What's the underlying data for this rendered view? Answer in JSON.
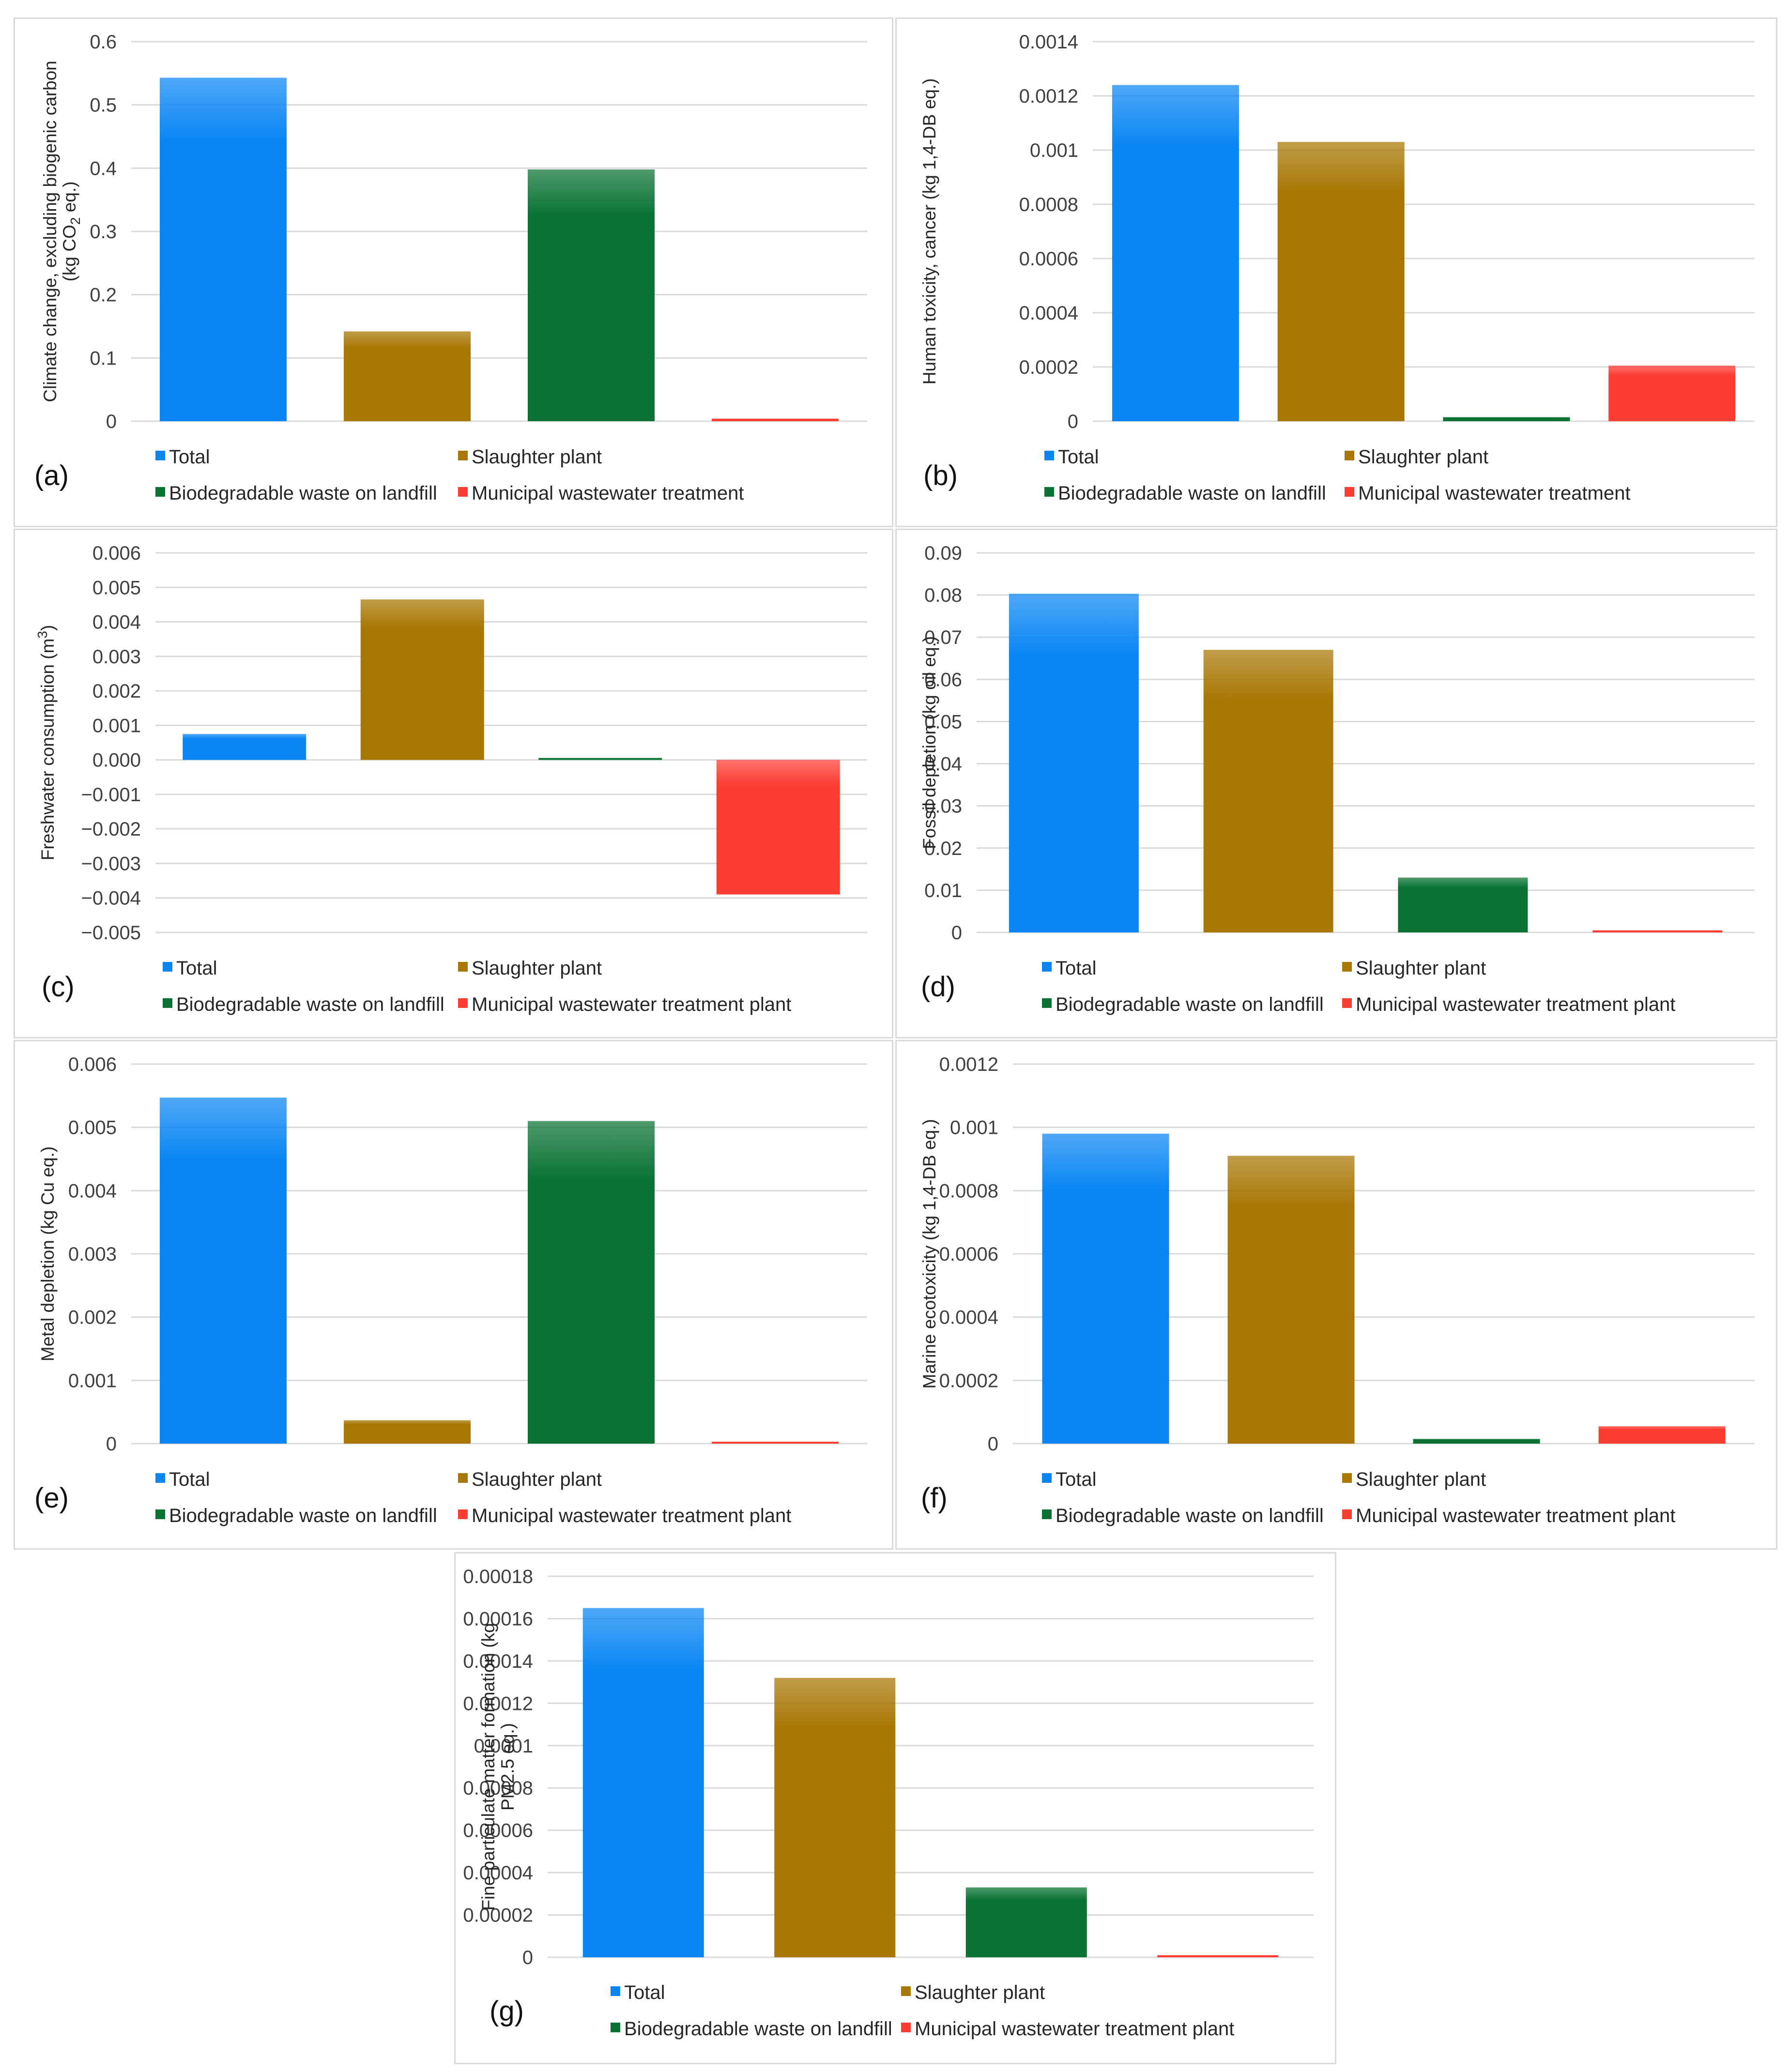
{
  "colors": {
    "Total": "#0a86f4",
    "Slaughter plant": "#a87704",
    "Biodegradable waste on landfill": "#0a7334",
    "Municipal wastewater treatment": "#fc3d34",
    "grid": "#d9d9d9"
  },
  "chart_data": [
    {
      "type": "bar",
      "panel_label": "(a)",
      "ylabel_lines": [
        "Climate change, excluding biogenic carbon",
        "(kg CO2 eq.)"
      ],
      "categories": [
        "Total",
        "Slaughter plant",
        "Biodegradable waste on landfill",
        "Municipal wastewater treatment"
      ],
      "legend": [
        "Total",
        "Slaughter plant",
        "Biodegradable waste on landfill",
        "Municipal wastewater treatment"
      ],
      "values": [
        0.543,
        0.142,
        0.398,
        0.004
      ],
      "ylim": [
        0,
        0.6
      ],
      "yticks": [
        "0",
        "0.1",
        "0.2",
        "0.3",
        "0.4",
        "0.5",
        "0.6"
      ]
    },
    {
      "type": "bar",
      "panel_label": "(b)",
      "ylabel_lines": [
        "Human toxicity, cancer (kg 1,4-DB eq.)"
      ],
      "categories": [
        "Total",
        "Slaughter plant",
        "Biodegradable waste on landfill",
        "Municipal wastewater treatment"
      ],
      "legend": [
        "Total",
        "Slaughter plant",
        "Biodegradable waste on landfill",
        "Municipal wastewater treatment"
      ],
      "values": [
        0.00124,
        0.00103,
        1.5e-05,
        0.000205
      ],
      "ylim": [
        0,
        0.0014
      ],
      "yticks": [
        "0",
        "0.0002",
        "0.0004",
        "0.0006",
        "0.0008",
        "0.001",
        "0.0012",
        "0.0014"
      ]
    },
    {
      "type": "bar",
      "panel_label": "(c)",
      "ylabel_lines": [
        "Freshwater consumption (m3)"
      ],
      "categories": [
        "Total",
        "Slaughter plant",
        "Biodegradable waste on landfill",
        "Municipal wastewater treatment plant"
      ],
      "legend": [
        "Total",
        "Slaughter plant",
        "Biodegradable waste on landfill",
        "Municipal wastewater treatment plant"
      ],
      "values": [
        0.00075,
        0.00465,
        5e-05,
        -0.0039
      ],
      "ylim": [
        -0.005,
        0.006
      ],
      "yticks": [
        "−0.005",
        "−0.004",
        "−0.003",
        "−0.002",
        "−0.001",
        "0.000",
        "0.001",
        "0.002",
        "0.003",
        "0.004",
        "0.005",
        "0.006"
      ]
    },
    {
      "type": "bar",
      "panel_label": "(d)",
      "ylabel_lines": [
        "Fossil depletion (kg oil eq.)"
      ],
      "categories": [
        "Total",
        "Slaughter plant",
        "Biodegradable waste on landfill",
        "Municipal wastewater treatment plant"
      ],
      "legend": [
        "Total",
        "Slaughter plant",
        "Biodegradable waste on landfill",
        "Municipal wastewater treatment plant"
      ],
      "values": [
        0.0803,
        0.067,
        0.013,
        0.0005
      ],
      "ylim": [
        0,
        0.09
      ],
      "yticks": [
        "0",
        "0.01",
        "0.02",
        "0.03",
        "0.04",
        "0.05",
        "0.06",
        "0.07",
        "0.08",
        "0.09"
      ]
    },
    {
      "type": "bar",
      "panel_label": "(e)",
      "ylabel_lines": [
        "Metal depletion (kg Cu eq.)"
      ],
      "categories": [
        "Total",
        "Slaughter plant",
        "Biodegradable waste on landfill",
        "Municipal wastewater treatment plant"
      ],
      "legend": [
        "Total",
        "Slaughter plant",
        "Biodegradable waste on landfill",
        "Municipal wastewater treatment plant"
      ],
      "values": [
        0.00547,
        0.00037,
        0.0051,
        2e-05
      ],
      "ylim": [
        0,
        0.006
      ],
      "yticks": [
        "0",
        "0.001",
        "0.002",
        "0.003",
        "0.004",
        "0.005",
        "0.006"
      ]
    },
    {
      "type": "bar",
      "panel_label": "(f)",
      "ylabel_lines": [
        "Marine ecotoxicity (kg 1,4-DB eq.)"
      ],
      "categories": [
        "Total",
        "Slaughter plant",
        "Biodegradable waste on landfill",
        "Municipal wastewater treatment plant"
      ],
      "legend": [
        "Total",
        "Slaughter plant",
        "Biodegradable waste on landfill",
        "Municipal wastewater treatment plant"
      ],
      "values": [
        0.00098,
        0.00091,
        1.5e-05,
        5.5e-05
      ],
      "ylim": [
        0,
        0.0012
      ],
      "yticks": [
        "0",
        "0.0002",
        "0.0004",
        "0.0006",
        "0.0008",
        "0.001",
        "0.0012"
      ]
    },
    {
      "type": "bar",
      "panel_label": "(g)",
      "ylabel_lines": [
        "Fine particulate matter formation (kg",
        "PM2.5 eq.)"
      ],
      "categories": [
        "Total",
        "Slaughter plant",
        "Biodegradable waste on landfill",
        "Municipal wastewater treatment plant"
      ],
      "legend": [
        "Total",
        "Slaughter plant",
        "Biodegradable waste on landfill",
        "Municipal wastewater treatment plant"
      ],
      "values": [
        0.000165,
        0.000132,
        3.3e-05,
        1e-06
      ],
      "ylim": [
        0,
        0.00018
      ],
      "yticks": [
        "0",
        "0.00002",
        "0.00004",
        "0.00006",
        "0.00008",
        "0.0001",
        "0.00012",
        "0.00014",
        "0.00016",
        "0.00018"
      ]
    }
  ]
}
